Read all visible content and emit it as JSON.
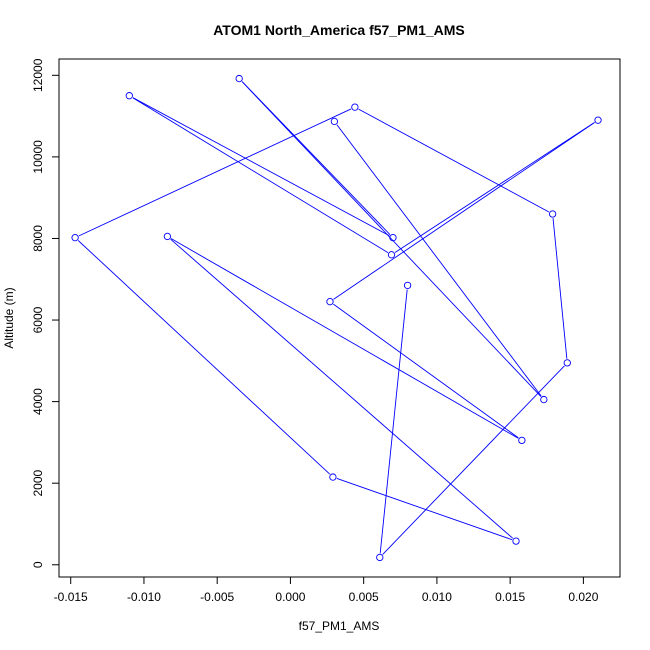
{
  "chart_data": {
    "type": "line",
    "title": "ATOM1 North_America f57_PM1_AMS",
    "xlabel": "f57_PM1_AMS",
    "ylabel": "Altitude (m)",
    "xlim": [
      -0.0158,
      0.0225
    ],
    "ylim": [
      -300,
      12400
    ],
    "x_ticks": [
      -0.015,
      -0.01,
      -0.005,
      0.0,
      0.005,
      0.01,
      0.015,
      0.02
    ],
    "x_tick_labels": [
      "-0.015",
      "-0.010",
      "-0.005",
      "0.000",
      "0.005",
      "0.010",
      "0.015",
      "0.020"
    ],
    "y_ticks": [
      0,
      2000,
      4000,
      6000,
      8000,
      10000,
      12000
    ],
    "y_tick_labels": [
      "0",
      "2000",
      "4000",
      "6000",
      "8000",
      "10000",
      "12000"
    ],
    "grid": false,
    "series": [
      {
        "color": "#0000ff",
        "marker": "open-circle",
        "x": [
          0.008,
          0.0061,
          0.0189,
          0.0179,
          0.0044,
          -0.0147,
          0.0029,
          0.0154,
          -0.0084,
          0.0158,
          0.0027,
          0.021,
          0.0069,
          -0.011,
          0.007,
          -0.0035,
          0.0173,
          0.003
        ],
        "y": [
          6850,
          180,
          4950,
          8600,
          11220,
          8020,
          2150,
          580,
          8050,
          3050,
          6450,
          10900,
          7600,
          11500,
          8020,
          11920,
          4050,
          10870
        ]
      }
    ]
  }
}
